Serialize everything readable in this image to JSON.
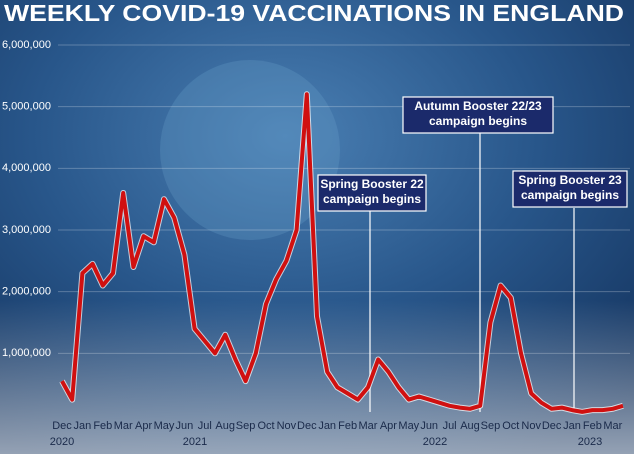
{
  "chart_data": {
    "type": "line",
    "title": "WEEKLY COVID-19 VACCINATIONS IN ENGLAND",
    "categories": [
      "Dec",
      null,
      "Jan",
      null,
      "Feb",
      null,
      "Mar",
      null,
      "Apr",
      null,
      "May",
      null,
      "Jun",
      null,
      "Jul",
      null,
      "Aug",
      null,
      "Sep",
      null,
      "Oct",
      null,
      "Nov",
      null,
      "Dec",
      null,
      "Jan",
      null,
      "Feb",
      null,
      "Mar",
      null,
      "Apr",
      null,
      "May",
      null,
      "Jun",
      null,
      "Jul",
      null,
      "Aug",
      null,
      "Sep",
      null,
      "Oct",
      null,
      "Nov",
      null,
      "Dec",
      null,
      "Jan",
      null,
      "Feb",
      null,
      "Mar",
      null
    ],
    "years": [
      "2020",
      "2021",
      "2022",
      "2023"
    ],
    "series": [
      {
        "name": "Weekly vaccinations",
        "color": "#d01010",
        "values": [
          550000,
          250000,
          2300000,
          2450000,
          2100000,
          2300000,
          3600000,
          2400000,
          2900000,
          2800000,
          3500000,
          3200000,
          2600000,
          1400000,
          1200000,
          1000000,
          1300000,
          900000,
          550000,
          1000000,
          1800000,
          2200000,
          2500000,
          3000000,
          5200000,
          1600000,
          700000,
          450000,
          350000,
          250000,
          450000,
          900000,
          700000,
          450000,
          250000,
          300000,
          250000,
          200000,
          150000,
          120000,
          100000,
          150000,
          1500000,
          2100000,
          1900000,
          1000000,
          350000,
          200000,
          100000,
          120000,
          80000,
          50000,
          80000,
          80000,
          100000,
          150000
        ]
      }
    ],
    "ylim": [
      0,
      6000000
    ],
    "yticks": [
      {
        "value": 1000000,
        "label": "1,000,000"
      },
      {
        "value": 2000000,
        "label": "2,000,000"
      },
      {
        "value": 3000000,
        "label": "3,000,000"
      },
      {
        "value": 4000000,
        "label": "4,000,000"
      },
      {
        "value": 5000000,
        "label": "5,000,000"
      },
      {
        "value": 6000000,
        "label": "6,000,000"
      }
    ],
    "grid": true,
    "annotations": [
      {
        "lines": [
          "Spring Booster 22",
          "campaign begins"
        ]
      },
      {
        "lines": [
          "Autumn Booster 22/23",
          "campaign begins"
        ]
      },
      {
        "lines": [
          "Spring Booster 23",
          "campaign begins"
        ]
      }
    ]
  }
}
